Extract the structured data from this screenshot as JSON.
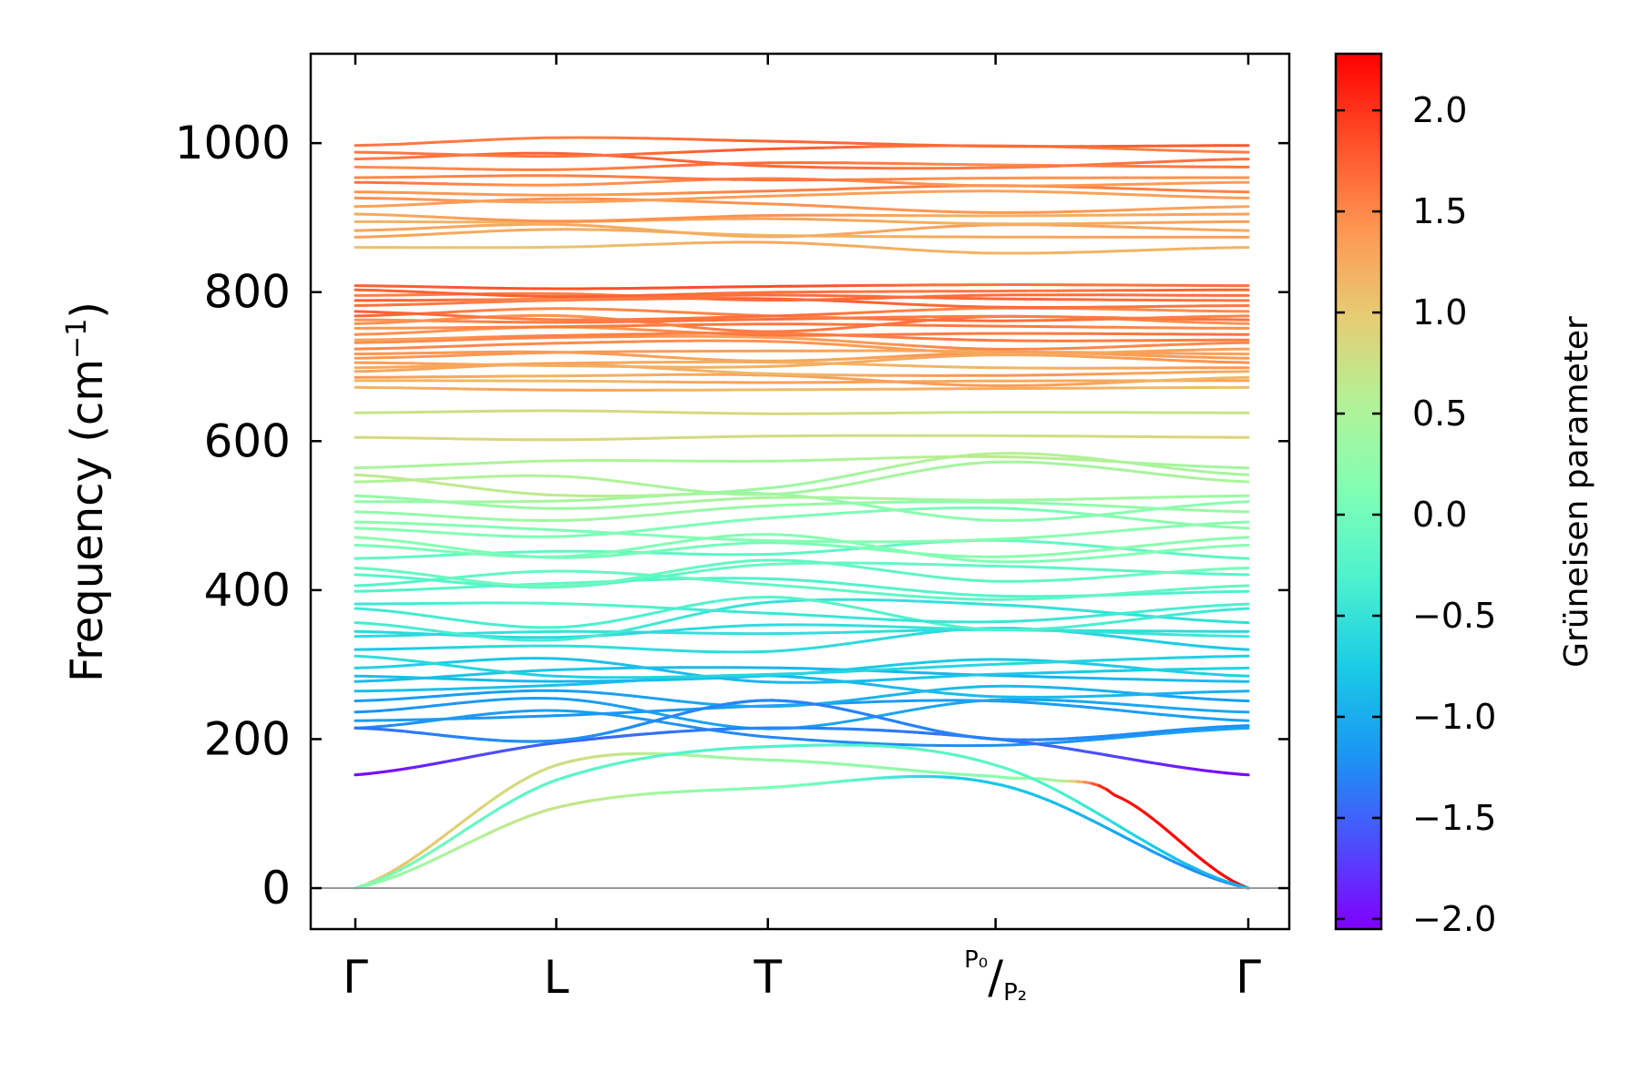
{
  "chart_data": {
    "type": "line",
    "title": "",
    "xlabel": "",
    "ylabel": "Frequency (cm$^{-1}$)",
    "ylabel_text": "Frequency (cm",
    "ylabel_sup": "−1",
    "ylabel_close": ")",
    "ylim": [
      -55,
      1120
    ],
    "yticks": [
      0,
      200,
      400,
      600,
      800,
      1000
    ],
    "ytick_labels": [
      "0",
      "200",
      "400",
      "600",
      "800",
      "1000"
    ],
    "x_ticks": [
      {
        "pos": 0.0,
        "label": "Γ"
      },
      {
        "pos": 0.225,
        "label": "L"
      },
      {
        "pos": 0.462,
        "label": "T"
      },
      {
        "pos": 0.717,
        "label_sup": "P₀",
        "label_slash": "/",
        "label_sub": "P₂"
      },
      {
        "pos": 1.0,
        "label": "Γ"
      }
    ],
    "colorbar": {
      "label": "Grüneisen parameter",
      "range": [
        -2.05,
        2.28
      ],
      "ticks": [
        2.0,
        1.5,
        1.0,
        0.5,
        0.0,
        -0.5,
        -1.0,
        -1.5,
        -2.0
      ],
      "tick_labels": [
        "2.0",
        "1.5",
        "1.0",
        "0.5",
        "0.0",
        "−0.5",
        "−1.0",
        "−1.5",
        "−2.0"
      ],
      "colormap": "rainbow"
    },
    "acoustic_branches": [
      {
        "name": "acoustic-1",
        "x": [
          0.0,
          0.225,
          0.462,
          0.717,
          0.78,
          0.85,
          1.0
        ],
        "y": [
          0,
          165,
          172,
          150,
          145,
          125,
          0
        ],
        "g": [
          1.1,
          0.8,
          0.3,
          0.2,
          0.4,
          2.2,
          2.3
        ]
      },
      {
        "name": "acoustic-2",
        "x": [
          0.0,
          0.225,
          0.462,
          0.717,
          1.0
        ],
        "y": [
          0,
          108,
          135,
          140,
          0
        ],
        "g": [
          0.3,
          0.7,
          0.1,
          -0.8,
          -1.3
        ]
      },
      {
        "name": "acoustic-3",
        "x": [
          0.0,
          0.225,
          0.462,
          0.717,
          1.0
        ],
        "y": [
          0,
          145,
          190,
          165,
          0
        ],
        "g": [
          0.1,
          -0.2,
          -0.3,
          -0.2,
          -1.0
        ]
      }
    ],
    "low_optical_branches": [
      {
        "name": "optic-low-1",
        "x": [
          0.0,
          0.225,
          0.462,
          0.717,
          1.0
        ],
        "y": [
          152,
          195,
          215,
          200,
          152
        ],
        "g": [
          -2.0,
          -1.5,
          -1.3,
          -1.4,
          -2.0
        ]
      },
      {
        "name": "optic-low-2",
        "x": [
          0.0,
          0.225,
          0.462,
          0.717,
          1.0
        ],
        "y": [
          215,
          198,
          252,
          200,
          218
        ],
        "g": [
          -1.4,
          -1.2,
          -1.3,
          -1.3,
          -1.2
        ]
      }
    ],
    "band_groups": [
      {
        "name": "optical-200-600",
        "count": 30,
        "range": [
          210,
          575
        ],
        "g_range": [
          -1.2,
          0.6
        ]
      },
      {
        "name": "optical-600-650",
        "count": 2,
        "values": [
          605,
          638
        ],
        "g": 0.85
      },
      {
        "name": "optical-670-840",
        "count": 22,
        "range": [
          672,
          812
        ],
        "g_range": [
          1.2,
          1.75
        ]
      },
      {
        "name": "optical-850-1070",
        "count": 14,
        "range": [
          858,
          1005
        ],
        "g_range": [
          1.15,
          1.7
        ]
      }
    ],
    "zero_line": 0
  }
}
